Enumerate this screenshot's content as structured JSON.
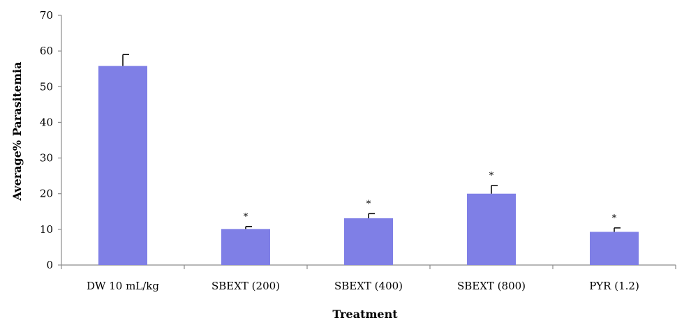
{
  "chart_data": {
    "type": "bar",
    "categories": [
      "DW 10 mL/kg",
      "SBEXT (200)",
      "SBEXT (400)",
      "SBEXT (800)",
      "PYR (1.2)"
    ],
    "values": [
      55.8,
      10.1,
      13.1,
      20.0,
      9.3
    ],
    "error_upper": [
      3.2,
      0.7,
      1.3,
      2.3,
      1.1
    ],
    "significance": [
      "",
      "*",
      "*",
      "*",
      "*"
    ],
    "title": "",
    "xlabel": "Treatment",
    "ylabel": "Average% Parasitemia",
    "ylim": [
      0,
      70
    ],
    "yticks": [
      0,
      10,
      20,
      30,
      40,
      50,
      60,
      70
    ],
    "bar_color": "#7f7fe6",
    "grid": false,
    "legend": "none"
  }
}
